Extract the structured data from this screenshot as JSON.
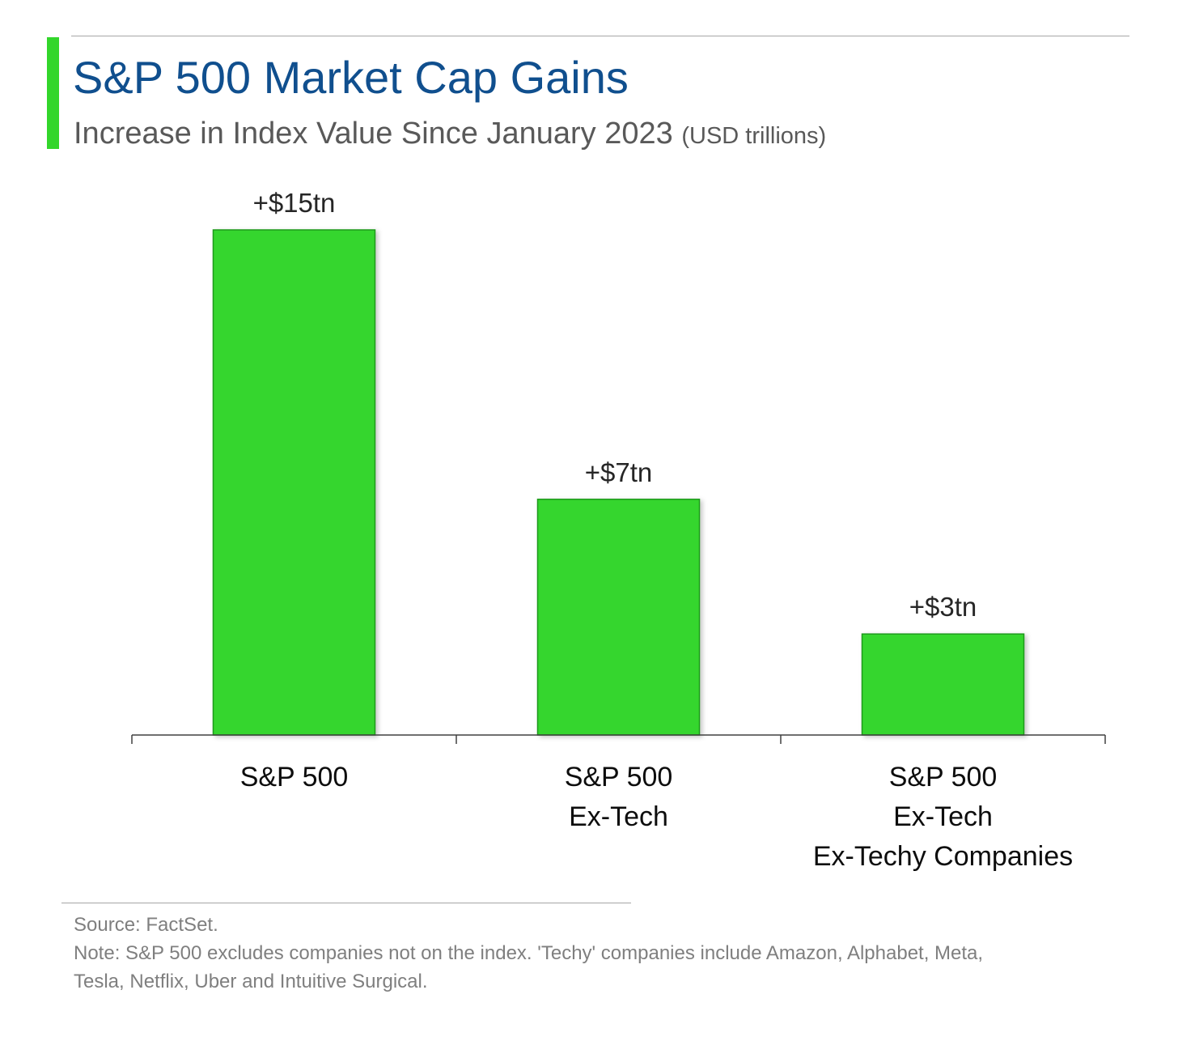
{
  "header": {
    "title": "S&P 500 Market Cap Gains",
    "subtitle": "Increase in Index Value Since January 2023",
    "units": "(USD trillions)"
  },
  "chart_data": {
    "type": "bar",
    "categories": [
      [
        "S&P 500"
      ],
      [
        "S&P 500",
        "Ex-Tech"
      ],
      [
        "S&P 500",
        "Ex-Tech",
        "Ex-Techy Companies"
      ]
    ],
    "values": [
      15,
      7,
      3
    ],
    "data_labels": [
      "+$15tn",
      "+$7tn",
      "+$3tn"
    ],
    "title": "S&P 500 Market Cap Gains",
    "xlabel": "",
    "ylabel": "",
    "ylim": [
      0,
      15
    ],
    "grid": false,
    "legend": "none",
    "bar_color": "#35d62e",
    "bar_edge_color": "#1e9a1a"
  },
  "footer": {
    "source": "Source: FactSet.",
    "note": "Note: S&P 500 excludes companies not on the index. 'Techy' companies include Amazon, Alphabet, Meta, Tesla, Netflix, Uber and Intuitive Surgical."
  },
  "colors": {
    "accent": "#33d62b",
    "title": "#104f8e",
    "subtitle": "#595959",
    "footer_text": "#7f7f7f",
    "axis": "#404040"
  }
}
